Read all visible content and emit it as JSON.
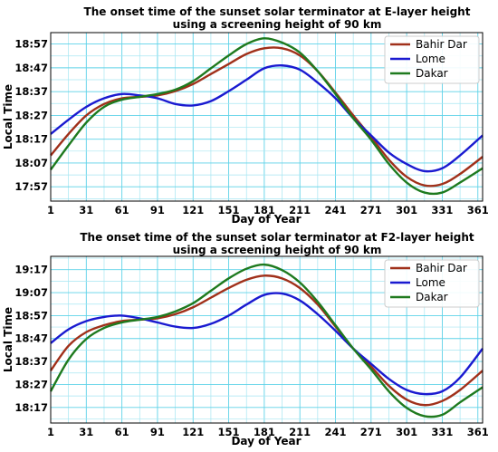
{
  "chart_data": [
    {
      "type": "line",
      "title": "The onset time of the sunset solar terminator at E-layer height",
      "subtitle": "using a screening height of 90 km",
      "xlabel": "Day of Year",
      "ylabel": "Local Time",
      "xlim": [
        1,
        365
      ],
      "ylim": [
        17.85,
        19.03
      ],
      "x_ticks": [
        1,
        31,
        61,
        91,
        121,
        151,
        181,
        211,
        241,
        271,
        301,
        331,
        361
      ],
      "y_ticks": [
        {
          "value": 17.95,
          "label": "17:57"
        },
        {
          "value": 18.1167,
          "label": "18:07"
        },
        {
          "value": 18.2833,
          "label": "18:17"
        },
        {
          "value": 18.45,
          "label": "18:27"
        },
        {
          "value": 18.6167,
          "label": "18:37"
        },
        {
          "value": 18.7833,
          "label": "18:47"
        },
        {
          "value": 18.95,
          "label": "18:57"
        }
      ],
      "grid": true,
      "legend": "top-right",
      "x": [
        1,
        16,
        31,
        46,
        61,
        76,
        91,
        106,
        121,
        136,
        151,
        166,
        181,
        196,
        211,
        226,
        241,
        256,
        271,
        286,
        301,
        316,
        331,
        346,
        365
      ],
      "series": [
        {
          "name": "Bahir Dar",
          "color": "#a0301a",
          "values": [
            18.17,
            18.32,
            18.45,
            18.53,
            18.57,
            18.58,
            18.59,
            18.62,
            18.67,
            18.74,
            18.81,
            18.88,
            18.92,
            18.92,
            18.87,
            18.76,
            18.61,
            18.45,
            18.3,
            18.14,
            18.02,
            17.96,
            17.97,
            18.04,
            18.16
          ]
        },
        {
          "name": "Lome",
          "color": "#1a1ad0",
          "values": [
            18.32,
            18.42,
            18.51,
            18.57,
            18.6,
            18.59,
            18.57,
            18.53,
            18.52,
            18.55,
            18.62,
            18.7,
            18.78,
            18.8,
            18.77,
            18.68,
            18.57,
            18.43,
            18.31,
            18.19,
            18.11,
            18.06,
            18.08,
            18.17,
            18.31
          ]
        },
        {
          "name": "Dakar",
          "color": "#1e7a1e",
          "values": [
            18.07,
            18.24,
            18.4,
            18.51,
            18.56,
            18.58,
            18.6,
            18.63,
            18.69,
            18.78,
            18.87,
            18.95,
            18.99,
            18.96,
            18.89,
            18.76,
            18.6,
            18.43,
            18.28,
            18.11,
            17.98,
            17.91,
            17.91,
            17.98,
            18.08
          ]
        }
      ]
    },
    {
      "type": "line",
      "title": "The onset time of the sunset solar terminator at F2-layer height",
      "subtitle": "using a screening height of 90 km",
      "xlabel": "Day of Year",
      "ylabel": "Local Time",
      "xlim": [
        1,
        365
      ],
      "ylim": [
        18.17,
        19.38
      ],
      "x_ticks": [
        1,
        31,
        61,
        91,
        121,
        151,
        181,
        211,
        241,
        271,
        301,
        331,
        361
      ],
      "y_ticks": [
        {
          "value": 18.2833,
          "label": "18:17"
        },
        {
          "value": 18.45,
          "label": "18:27"
        },
        {
          "value": 18.6167,
          "label": "18:37"
        },
        {
          "value": 18.7833,
          "label": "18:47"
        },
        {
          "value": 18.95,
          "label": "18:57"
        },
        {
          "value": 19.1167,
          "label": "19:07"
        },
        {
          "value": 19.2833,
          "label": "19:17"
        }
      ],
      "grid": true,
      "legend": "top-right",
      "x": [
        1,
        16,
        31,
        46,
        61,
        76,
        91,
        106,
        121,
        136,
        151,
        166,
        181,
        196,
        211,
        226,
        241,
        256,
        271,
        286,
        301,
        316,
        331,
        346,
        365
      ],
      "series": [
        {
          "name": "Bahir Dar",
          "color": "#a0301a",
          "values": [
            18.55,
            18.73,
            18.83,
            18.88,
            18.91,
            18.92,
            18.93,
            18.96,
            19.01,
            19.08,
            19.15,
            19.21,
            19.24,
            19.22,
            19.15,
            19.03,
            18.87,
            18.71,
            18.58,
            18.44,
            18.34,
            18.3,
            18.33,
            18.41,
            18.55
          ]
        },
        {
          "name": "Lome",
          "color": "#1a1ad0",
          "values": [
            18.75,
            18.85,
            18.91,
            18.94,
            18.95,
            18.93,
            18.9,
            18.87,
            18.86,
            18.89,
            18.95,
            19.03,
            19.1,
            19.11,
            19.06,
            18.96,
            18.84,
            18.71,
            18.6,
            18.49,
            18.41,
            18.38,
            18.4,
            18.5,
            18.71
          ]
        },
        {
          "name": "Dakar",
          "color": "#1e7a1e",
          "values": [
            18.4,
            18.63,
            18.78,
            18.86,
            18.9,
            18.92,
            18.94,
            18.98,
            19.04,
            19.13,
            19.22,
            19.29,
            19.32,
            19.28,
            19.19,
            19.05,
            18.88,
            18.71,
            18.56,
            18.4,
            18.28,
            18.22,
            18.23,
            18.32,
            18.43
          ]
        }
      ]
    }
  ]
}
